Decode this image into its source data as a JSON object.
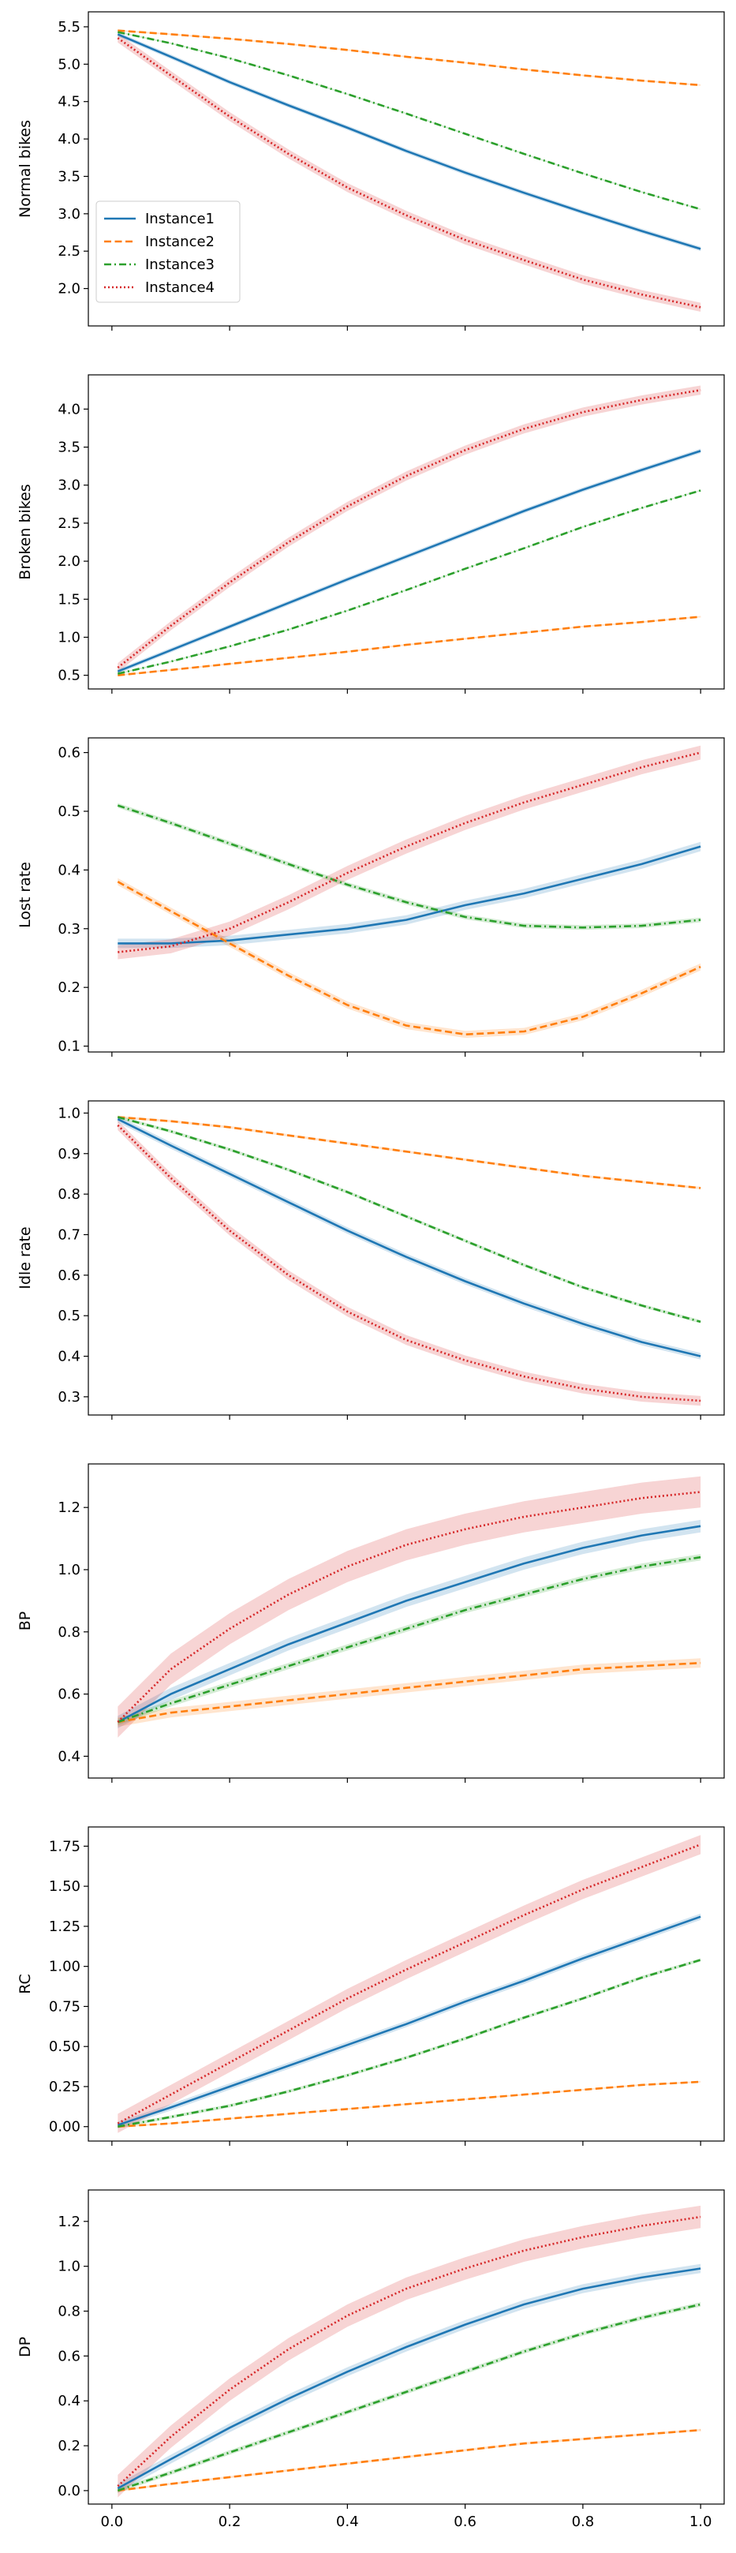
{
  "colors": {
    "Instance1": "#1f77b4",
    "Instance2": "#ff7f0e",
    "Instance3": "#2ca02c",
    "Instance4": "#d62728"
  },
  "chart_data": [
    {
      "type": "line",
      "ylabel": "Normal bikes",
      "xlim": [
        -0.04,
        1.04
      ],
      "ylim": [
        1.5,
        5.7
      ],
      "yticks": [
        2.0,
        2.5,
        3.0,
        3.5,
        4.0,
        4.5,
        5.0,
        5.5
      ],
      "xticks": [
        0.0,
        0.2,
        0.4,
        0.6,
        0.8,
        1.0
      ],
      "show_xticklabels": false,
      "legend": "left",
      "x": [
        0.01,
        0.1,
        0.2,
        0.3,
        0.4,
        0.5,
        0.6,
        0.7,
        0.8,
        0.9,
        1.0
      ],
      "series": [
        {
          "name": "Instance1",
          "style": "solid",
          "band": 0.03,
          "values": [
            5.4,
            5.1,
            4.76,
            4.45,
            4.15,
            3.84,
            3.55,
            3.28,
            3.02,
            2.77,
            2.53
          ]
        },
        {
          "name": "Instance2",
          "style": "dashed",
          "band": 0.01,
          "values": [
            5.45,
            5.4,
            5.34,
            5.27,
            5.19,
            5.1,
            5.02,
            4.93,
            4.85,
            4.78,
            4.72
          ]
        },
        {
          "name": "Instance3",
          "style": "dashdot",
          "band": 0.01,
          "values": [
            5.43,
            5.28,
            5.08,
            4.85,
            4.6,
            4.34,
            4.07,
            3.8,
            3.54,
            3.29,
            3.06
          ]
        },
        {
          "name": "Instance4",
          "style": "dotted",
          "band": 0.06,
          "values": [
            5.35,
            4.85,
            4.3,
            3.8,
            3.35,
            2.98,
            2.65,
            2.38,
            2.12,
            1.92,
            1.75
          ]
        }
      ]
    },
    {
      "type": "line",
      "ylabel": "Broken bikes",
      "xlim": [
        -0.04,
        1.04
      ],
      "ylim": [
        0.32,
        4.45
      ],
      "yticks": [
        0.5,
        1.0,
        1.5,
        2.0,
        2.5,
        3.0,
        3.5,
        4.0
      ],
      "xticks": [
        0.0,
        0.2,
        0.4,
        0.6,
        0.8,
        1.0
      ],
      "show_xticklabels": false,
      "x": [
        0.01,
        0.1,
        0.2,
        0.3,
        0.4,
        0.5,
        0.6,
        0.7,
        0.8,
        0.9,
        1.0
      ],
      "series": [
        {
          "name": "Instance1",
          "style": "solid",
          "band": 0.03,
          "values": [
            0.55,
            0.83,
            1.14,
            1.45,
            1.76,
            2.06,
            2.36,
            2.66,
            2.94,
            3.2,
            3.45
          ]
        },
        {
          "name": "Instance2",
          "style": "dashed",
          "band": 0.01,
          "values": [
            0.5,
            0.57,
            0.65,
            0.73,
            0.81,
            0.9,
            0.98,
            1.06,
            1.14,
            1.2,
            1.27
          ]
        },
        {
          "name": "Instance3",
          "style": "dashdot",
          "band": 0.01,
          "values": [
            0.52,
            0.68,
            0.88,
            1.1,
            1.35,
            1.62,
            1.9,
            2.17,
            2.45,
            2.7,
            2.93
          ]
        },
        {
          "name": "Instance4",
          "style": "dotted",
          "band": 0.06,
          "values": [
            0.6,
            1.15,
            1.72,
            2.25,
            2.72,
            3.12,
            3.46,
            3.74,
            3.96,
            4.12,
            4.25
          ]
        }
      ]
    },
    {
      "type": "line",
      "ylabel": "Lost rate",
      "xlim": [
        -0.04,
        1.04
      ],
      "ylim": [
        0.09,
        0.625
      ],
      "yticks": [
        0.1,
        0.2,
        0.3,
        0.4,
        0.5,
        0.6
      ],
      "xticks": [
        0.0,
        0.2,
        0.4,
        0.6,
        0.8,
        1.0
      ],
      "show_xticklabels": false,
      "x": [
        0.01,
        0.1,
        0.2,
        0.3,
        0.4,
        0.5,
        0.6,
        0.7,
        0.8,
        0.9,
        1.0
      ],
      "series": [
        {
          "name": "Instance1",
          "style": "solid",
          "band": 0.008,
          "values": [
            0.275,
            0.275,
            0.28,
            0.29,
            0.3,
            0.315,
            0.34,
            0.36,
            0.385,
            0.41,
            0.44
          ]
        },
        {
          "name": "Instance2",
          "style": "dashed",
          "band": 0.006,
          "values": [
            0.38,
            0.33,
            0.275,
            0.22,
            0.17,
            0.135,
            0.12,
            0.125,
            0.15,
            0.19,
            0.235
          ]
        },
        {
          "name": "Instance3",
          "style": "dashdot",
          "band": 0.004,
          "values": [
            0.51,
            0.48,
            0.445,
            0.41,
            0.375,
            0.345,
            0.32,
            0.305,
            0.302,
            0.305,
            0.315
          ]
        },
        {
          "name": "Instance4",
          "style": "dotted",
          "band": 0.012,
          "values": [
            0.26,
            0.27,
            0.3,
            0.345,
            0.395,
            0.44,
            0.48,
            0.515,
            0.545,
            0.575,
            0.6
          ]
        }
      ]
    },
    {
      "type": "line",
      "ylabel": "Idle rate",
      "xlim": [
        -0.04,
        1.04
      ],
      "ylim": [
        0.255,
        1.03
      ],
      "yticks": [
        0.3,
        0.4,
        0.5,
        0.6,
        0.7,
        0.8,
        0.9,
        1.0
      ],
      "xticks": [
        0.0,
        0.2,
        0.4,
        0.6,
        0.8,
        1.0
      ],
      "show_xticklabels": false,
      "x": [
        0.01,
        0.1,
        0.2,
        0.3,
        0.4,
        0.5,
        0.6,
        0.7,
        0.8,
        0.9,
        1.0
      ],
      "series": [
        {
          "name": "Instance1",
          "style": "solid",
          "band": 0.008,
          "values": [
            0.985,
            0.92,
            0.85,
            0.78,
            0.71,
            0.645,
            0.585,
            0.53,
            0.48,
            0.435,
            0.4
          ]
        },
        {
          "name": "Instance2",
          "style": "dashed",
          "band": 0.003,
          "values": [
            0.99,
            0.98,
            0.965,
            0.945,
            0.925,
            0.905,
            0.885,
            0.865,
            0.845,
            0.83,
            0.815
          ]
        },
        {
          "name": "Instance3",
          "style": "dashdot",
          "band": 0.004,
          "values": [
            0.99,
            0.955,
            0.91,
            0.86,
            0.805,
            0.745,
            0.685,
            0.625,
            0.57,
            0.525,
            0.485
          ]
        },
        {
          "name": "Instance4",
          "style": "dotted",
          "band": 0.012,
          "values": [
            0.97,
            0.84,
            0.71,
            0.6,
            0.51,
            0.44,
            0.39,
            0.35,
            0.32,
            0.3,
            0.29
          ]
        }
      ]
    },
    {
      "type": "line",
      "ylabel": "BP",
      "xlim": [
        -0.04,
        1.04
      ],
      "ylim": [
        0.33,
        1.34
      ],
      "yticks": [
        0.4,
        0.6,
        0.8,
        1.0,
        1.2
      ],
      "xticks": [
        0.0,
        0.2,
        0.4,
        0.6,
        0.8,
        1.0
      ],
      "show_xticklabels": false,
      "x": [
        0.01,
        0.1,
        0.2,
        0.3,
        0.4,
        0.5,
        0.6,
        0.7,
        0.8,
        0.9,
        1.0
      ],
      "series": [
        {
          "name": "Instance1",
          "style": "solid",
          "band": 0.02,
          "values": [
            0.51,
            0.6,
            0.68,
            0.76,
            0.83,
            0.9,
            0.96,
            1.02,
            1.07,
            1.11,
            1.14
          ]
        },
        {
          "name": "Instance2",
          "style": "dashed",
          "band": 0.015,
          "values": [
            0.51,
            0.54,
            0.56,
            0.58,
            0.6,
            0.62,
            0.64,
            0.66,
            0.68,
            0.69,
            0.7
          ]
        },
        {
          "name": "Instance3",
          "style": "dashdot",
          "band": 0.01,
          "values": [
            0.51,
            0.57,
            0.63,
            0.69,
            0.75,
            0.81,
            0.87,
            0.92,
            0.97,
            1.01,
            1.04
          ]
        },
        {
          "name": "Instance4",
          "style": "dotted",
          "band": 0.05,
          "values": [
            0.51,
            0.68,
            0.81,
            0.92,
            1.01,
            1.08,
            1.13,
            1.17,
            1.2,
            1.23,
            1.25
          ]
        }
      ]
    },
    {
      "type": "line",
      "ylabel": "RC",
      "xlim": [
        -0.04,
        1.04
      ],
      "ylim": [
        -0.09,
        1.87
      ],
      "yticks": [
        0.0,
        0.25,
        0.5,
        0.75,
        1.0,
        1.25,
        1.5,
        1.75
      ],
      "xticks": [
        0.0,
        0.2,
        0.4,
        0.6,
        0.8,
        1.0
      ],
      "show_xticklabels": false,
      "x": [
        0.01,
        0.1,
        0.2,
        0.3,
        0.4,
        0.5,
        0.6,
        0.7,
        0.8,
        0.9,
        1.0
      ],
      "series": [
        {
          "name": "Instance1",
          "style": "solid",
          "band": 0.02,
          "values": [
            0.01,
            0.12,
            0.25,
            0.38,
            0.51,
            0.64,
            0.78,
            0.91,
            1.05,
            1.18,
            1.31
          ]
        },
        {
          "name": "Instance2",
          "style": "dashed",
          "band": 0.005,
          "values": [
            0.0,
            0.02,
            0.05,
            0.08,
            0.11,
            0.14,
            0.17,
            0.2,
            0.23,
            0.26,
            0.28
          ]
        },
        {
          "name": "Instance3",
          "style": "dashdot",
          "band": 0.01,
          "values": [
            0.0,
            0.06,
            0.13,
            0.22,
            0.32,
            0.43,
            0.55,
            0.68,
            0.8,
            0.93,
            1.04
          ]
        },
        {
          "name": "Instance4",
          "style": "dotted",
          "band": 0.06,
          "values": [
            0.02,
            0.2,
            0.4,
            0.6,
            0.8,
            0.98,
            1.15,
            1.32,
            1.48,
            1.62,
            1.76
          ]
        }
      ]
    },
    {
      "type": "line",
      "ylabel": "DP",
      "xlim": [
        -0.04,
        1.04
      ],
      "ylim": [
        -0.06,
        1.34
      ],
      "yticks": [
        0.0,
        0.2,
        0.4,
        0.6,
        0.8,
        1.0,
        1.2
      ],
      "xticks": [
        0.0,
        0.2,
        0.4,
        0.6,
        0.8,
        1.0
      ],
      "xticklabels": [
        "0.0",
        "0.2",
        "0.4",
        "0.6",
        "0.8",
        "1.0"
      ],
      "show_xticklabels": true,
      "x": [
        0.01,
        0.1,
        0.2,
        0.3,
        0.4,
        0.5,
        0.6,
        0.7,
        0.8,
        0.9,
        1.0
      ],
      "series": [
        {
          "name": "Instance1",
          "style": "solid",
          "band": 0.02,
          "values": [
            0.01,
            0.14,
            0.28,
            0.41,
            0.53,
            0.64,
            0.74,
            0.83,
            0.9,
            0.95,
            0.99
          ]
        },
        {
          "name": "Instance2",
          "style": "dashed",
          "band": 0.005,
          "values": [
            0.0,
            0.03,
            0.06,
            0.09,
            0.12,
            0.15,
            0.18,
            0.21,
            0.23,
            0.25,
            0.27
          ]
        },
        {
          "name": "Instance3",
          "style": "dashdot",
          "band": 0.01,
          "values": [
            0.0,
            0.08,
            0.17,
            0.26,
            0.35,
            0.44,
            0.53,
            0.62,
            0.7,
            0.77,
            0.83
          ]
        },
        {
          "name": "Instance4",
          "style": "dotted",
          "band": 0.05,
          "values": [
            0.02,
            0.24,
            0.45,
            0.63,
            0.78,
            0.9,
            0.99,
            1.07,
            1.13,
            1.18,
            1.22
          ]
        }
      ]
    }
  ]
}
